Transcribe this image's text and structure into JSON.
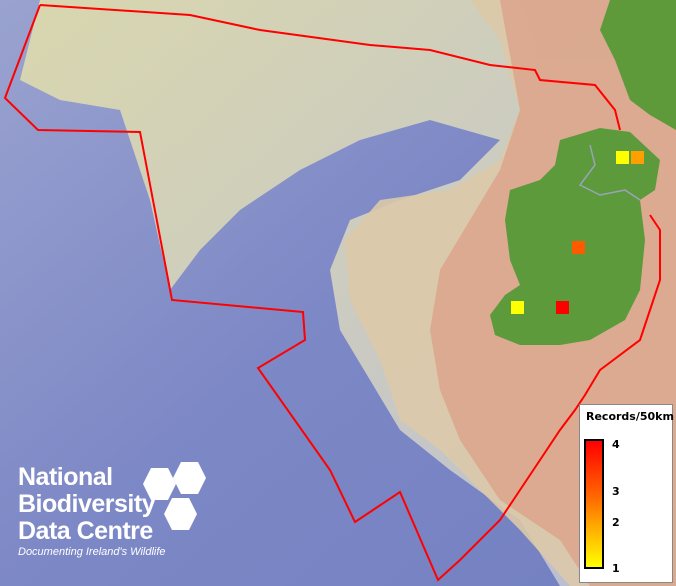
{
  "map": {
    "colors": {
      "deep_sea": "#7a85c8",
      "shelf": "#d8d2b0",
      "land": "#dca88e",
      "ireland": "#5d9a3c",
      "boundary": "#ff0000",
      "legend_max": "#ff0000",
      "legend_min": "#ffff00"
    },
    "records": [
      {
        "value": 1,
        "color": "#ffff00"
      },
      {
        "value": 2.5,
        "color": "#ffa000"
      },
      {
        "value": 3,
        "color": "#ff5a00"
      },
      {
        "value": 1,
        "color": "#ffff00"
      },
      {
        "value": 4,
        "color": "#ff0000"
      }
    ]
  },
  "legend": {
    "title": "Records/50km",
    "ticks": [
      "4",
      "3",
      "2",
      "1"
    ]
  },
  "logo": {
    "line1": "National",
    "line2": "Biodiversity",
    "line3": "Data Centre",
    "tagline": "Documenting Ireland's Wildlife"
  }
}
